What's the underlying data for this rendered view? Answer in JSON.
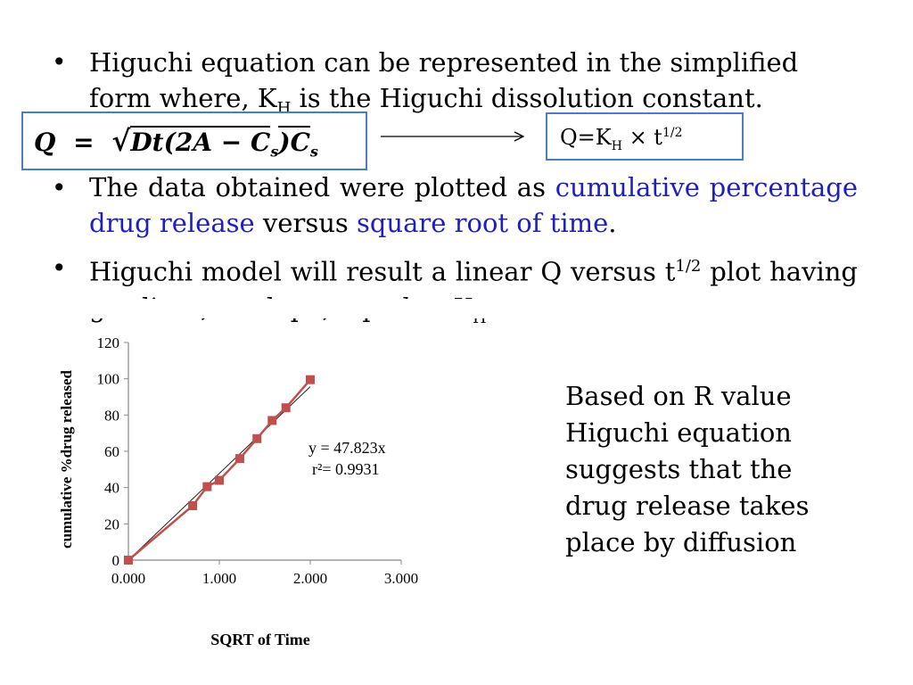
{
  "slide": {
    "bullet1": {
      "line1": "Higuchi equation can be represented in the simplified",
      "line2_pre": "form where, K",
      "line2_sub": "H",
      "line2_post": " is the Higuchi dissolution constant."
    },
    "equation_left": {
      "q": "Q",
      "eq": "=",
      "radical": "√",
      "body": "Dt(2A − C",
      "sub": "s",
      "mid": ")C",
      "sub2": "s"
    },
    "equation_right": {
      "pre": "Q=K",
      "sub": "H",
      "times": " × t",
      "sup": "1/2"
    },
    "bullet2": {
      "pre": "The data obtained were plotted as ",
      "hl1": "cumulative percentage drug release",
      "mid": " versus ",
      "hl2": "square root of time",
      "post": "."
    },
    "bullet3": {
      "pre": "Higuchi model will result a linear Q versus t",
      "sup": "1/2",
      "post1": " plot having gradient, or slope, equal to K",
      "sub": "H"
    },
    "conclusion": [
      "Based on R value",
      "Higuchi equation",
      "suggests that the",
      "drug release takes",
      "place by diffusion"
    ]
  },
  "colors": {
    "accent_text": "#1f1fbf",
    "box_border": "#4a7fbf",
    "series": "#c0504d"
  },
  "chart_data": {
    "type": "line",
    "xlabel": "SQRT of Time",
    "ylabel": "cumulative %drug released",
    "xlim": [
      0,
      3
    ],
    "ylim": [
      0,
      120
    ],
    "x_ticks": [
      "0.000",
      "1.000",
      "2.000",
      "3.000"
    ],
    "y_ticks": [
      "0",
      "20",
      "40",
      "60",
      "80",
      "100",
      "120"
    ],
    "series": [
      {
        "x": [
          0,
          0.707,
          0.866,
          1,
          1.225,
          1.414,
          1.581,
          1.732,
          2
        ],
        "y": [
          0,
          30,
          40.5,
          44,
          56,
          67,
          77,
          84,
          99.5
        ]
      }
    ],
    "trendline": {
      "slope": 47.823,
      "eq_label": "y = 47.823x",
      "r2_label": "r²= 0.9931"
    }
  }
}
